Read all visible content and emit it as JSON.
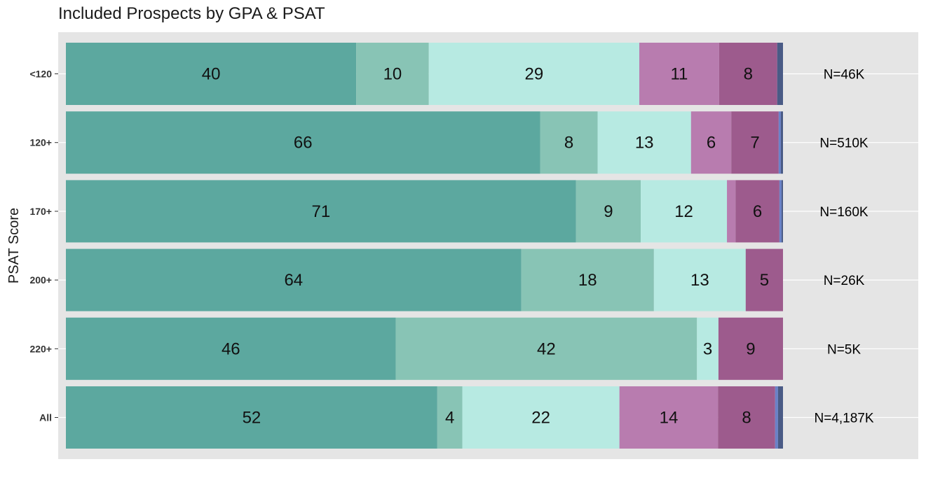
{
  "chart_data": {
    "type": "bar",
    "orientation": "horizontal",
    "stacked": "percent",
    "title": "Included Prospects by GPA & PSAT",
    "xlabel": "",
    "ylabel": "PSAT Score",
    "categories": [
      "<120",
      "120+",
      "170+",
      "200+",
      "220+",
      "All"
    ],
    "n_labels": [
      "N=46K",
      "N=510K",
      "N=160K",
      "N=26K",
      "N=5K",
      "N=4,187K"
    ],
    "segment_colors": [
      "#5ca89f",
      "#88c4b5",
      "#b7eae2",
      "#b87caf",
      "#9d5b8d",
      "#6a82c8",
      "#4a5b86"
    ],
    "rows": [
      {
        "category": "<120",
        "values": [
          40,
          10,
          29,
          11,
          8,
          0,
          0.8
        ],
        "labels": [
          "40",
          "10",
          "29",
          "11",
          "8",
          "",
          ""
        ]
      },
      {
        "category": "120+",
        "values": [
          66,
          8,
          13,
          5.6,
          6.6,
          0.3,
          0.3
        ],
        "labels": [
          "66",
          "8",
          "13",
          "6",
          "7",
          "",
          ""
        ]
      },
      {
        "category": "170+",
        "values": [
          71,
          9,
          12,
          1.2,
          6.1,
          0.3,
          0.2
        ],
        "labels": [
          "71",
          "9",
          "12",
          "",
          "6",
          "",
          ""
        ]
      },
      {
        "category": "200+",
        "values": [
          63.5,
          18.5,
          12.8,
          0,
          5.2,
          0,
          0
        ],
        "labels": [
          "64",
          "18",
          "13",
          "",
          "5",
          "",
          ""
        ]
      },
      {
        "category": "220+",
        "values": [
          46,
          42,
          3,
          0,
          9,
          0,
          0
        ],
        "labels": [
          "46",
          "42",
          "3",
          "",
          "9",
          "",
          ""
        ]
      },
      {
        "category": "All",
        "values": [
          52,
          3.5,
          22,
          13.8,
          8,
          0.4,
          0.7
        ],
        "labels": [
          "52",
          "4",
          "22",
          "14",
          "8",
          "",
          ""
        ]
      }
    ],
    "panel_background": "#e5e5e5",
    "grid": true,
    "legend": "none"
  }
}
